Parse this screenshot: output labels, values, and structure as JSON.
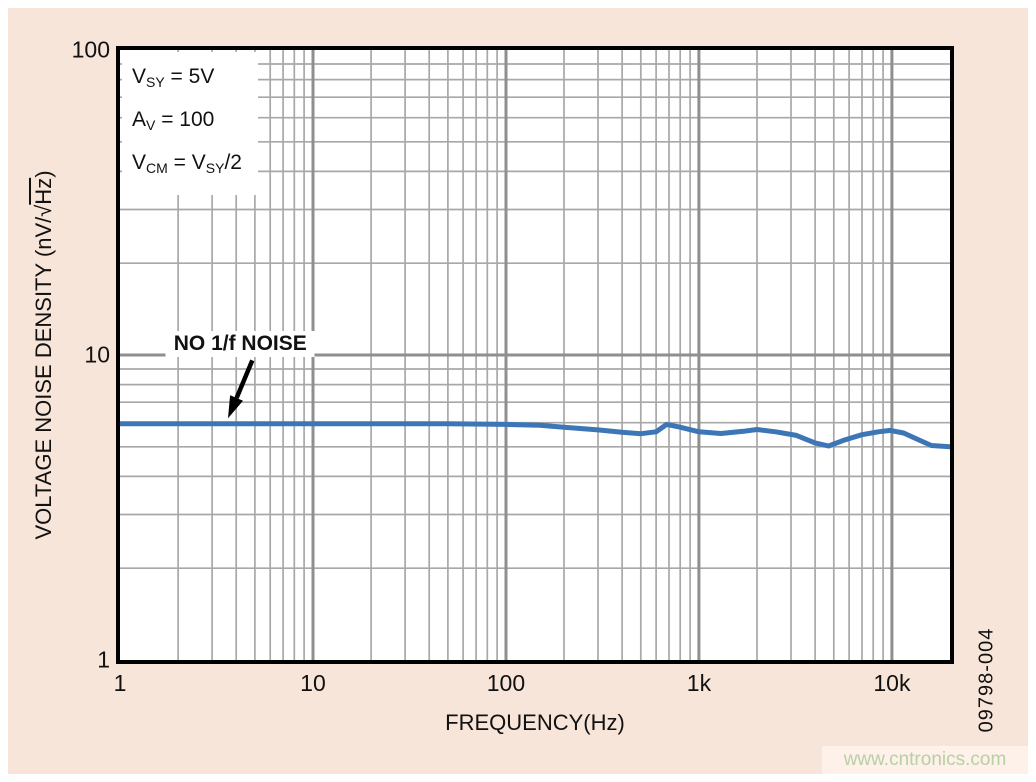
{
  "page": {
    "figure_number": "09798-004",
    "watermark_text": "www.cntronics.com",
    "colors": {
      "page_bg": "#f8e5d9",
      "plot_bg": "#ffffff",
      "grid_minor": "#a8a8a8",
      "grid_major": "#8f8f8f",
      "curve": "#3c76b6",
      "axis_border": "#000000",
      "text": "#111111",
      "watermark_fg": "#b9cfa4",
      "watermark_bg": "#fdf1e9"
    }
  },
  "chart_data": {
    "type": "line",
    "title": "",
    "grid": true,
    "x_axis": {
      "label": "FREQUENCY(Hz)",
      "scale": "log",
      "min": 1,
      "max": 20000,
      "ticks": [
        {
          "value": 1,
          "label": "1"
        },
        {
          "value": 10,
          "label": "10"
        },
        {
          "value": 100,
          "label": "100"
        },
        {
          "value": 1000,
          "label": "1k"
        },
        {
          "value": 10000,
          "label": "10k"
        }
      ]
    },
    "y_axis": {
      "label_plain": "VOLTAGE NOISE DENSITY (nV/√Hz)",
      "label_segments": [
        {
          "t": "VOLTAGE NOISE DENSITY (nV/"
        },
        {
          "t": "√"
        },
        {
          "t": "Hz",
          "overline": true
        },
        {
          "t": ")"
        }
      ],
      "scale": "log",
      "min": 1,
      "max": 100,
      "ticks": [
        {
          "value": 1,
          "label": "1"
        },
        {
          "value": 10,
          "label": "10"
        },
        {
          "value": 100,
          "label": "100"
        }
      ]
    },
    "series": [
      {
        "name": "voltage-noise-density",
        "color": "#3c76b6",
        "points": [
          [
            1,
            5.95
          ],
          [
            2,
            5.95
          ],
          [
            5,
            5.95
          ],
          [
            10,
            5.95
          ],
          [
            20,
            5.95
          ],
          [
            50,
            5.95
          ],
          [
            100,
            5.92
          ],
          [
            150,
            5.88
          ],
          [
            200,
            5.8
          ],
          [
            300,
            5.68
          ],
          [
            400,
            5.58
          ],
          [
            500,
            5.52
          ],
          [
            600,
            5.6
          ],
          [
            680,
            5.92
          ],
          [
            800,
            5.8
          ],
          [
            1000,
            5.6
          ],
          [
            1300,
            5.53
          ],
          [
            1700,
            5.62
          ],
          [
            2000,
            5.7
          ],
          [
            2500,
            5.6
          ],
          [
            3200,
            5.45
          ],
          [
            4000,
            5.15
          ],
          [
            4700,
            5.03
          ],
          [
            5600,
            5.25
          ],
          [
            7000,
            5.48
          ],
          [
            8500,
            5.6
          ],
          [
            9800,
            5.66
          ],
          [
            11500,
            5.55
          ],
          [
            13500,
            5.3
          ],
          [
            16000,
            5.05
          ],
          [
            20000,
            5.0
          ]
        ]
      }
    ],
    "conditions": [
      {
        "segments": [
          {
            "t": "V"
          },
          {
            "t": "SY",
            "sub": true
          },
          {
            "t": " = 5V"
          }
        ]
      },
      {
        "segments": [
          {
            "t": "A"
          },
          {
            "t": "V",
            "sub": true
          },
          {
            "t": " = 100"
          }
        ]
      },
      {
        "segments": [
          {
            "t": "V"
          },
          {
            "t": "CM",
            "sub": true
          },
          {
            "t": " = V"
          },
          {
            "t": "SY",
            "sub": true
          },
          {
            "t": "/2"
          }
        ]
      }
    ],
    "callout": {
      "text": "NO 1/f NOISE",
      "label_at": {
        "x": 4.2,
        "y": 10.9
      },
      "arrow_from": {
        "x": 4.85,
        "y": 9.6
      },
      "arrow_to": {
        "x": 3.63,
        "y": 6.2
      }
    }
  }
}
